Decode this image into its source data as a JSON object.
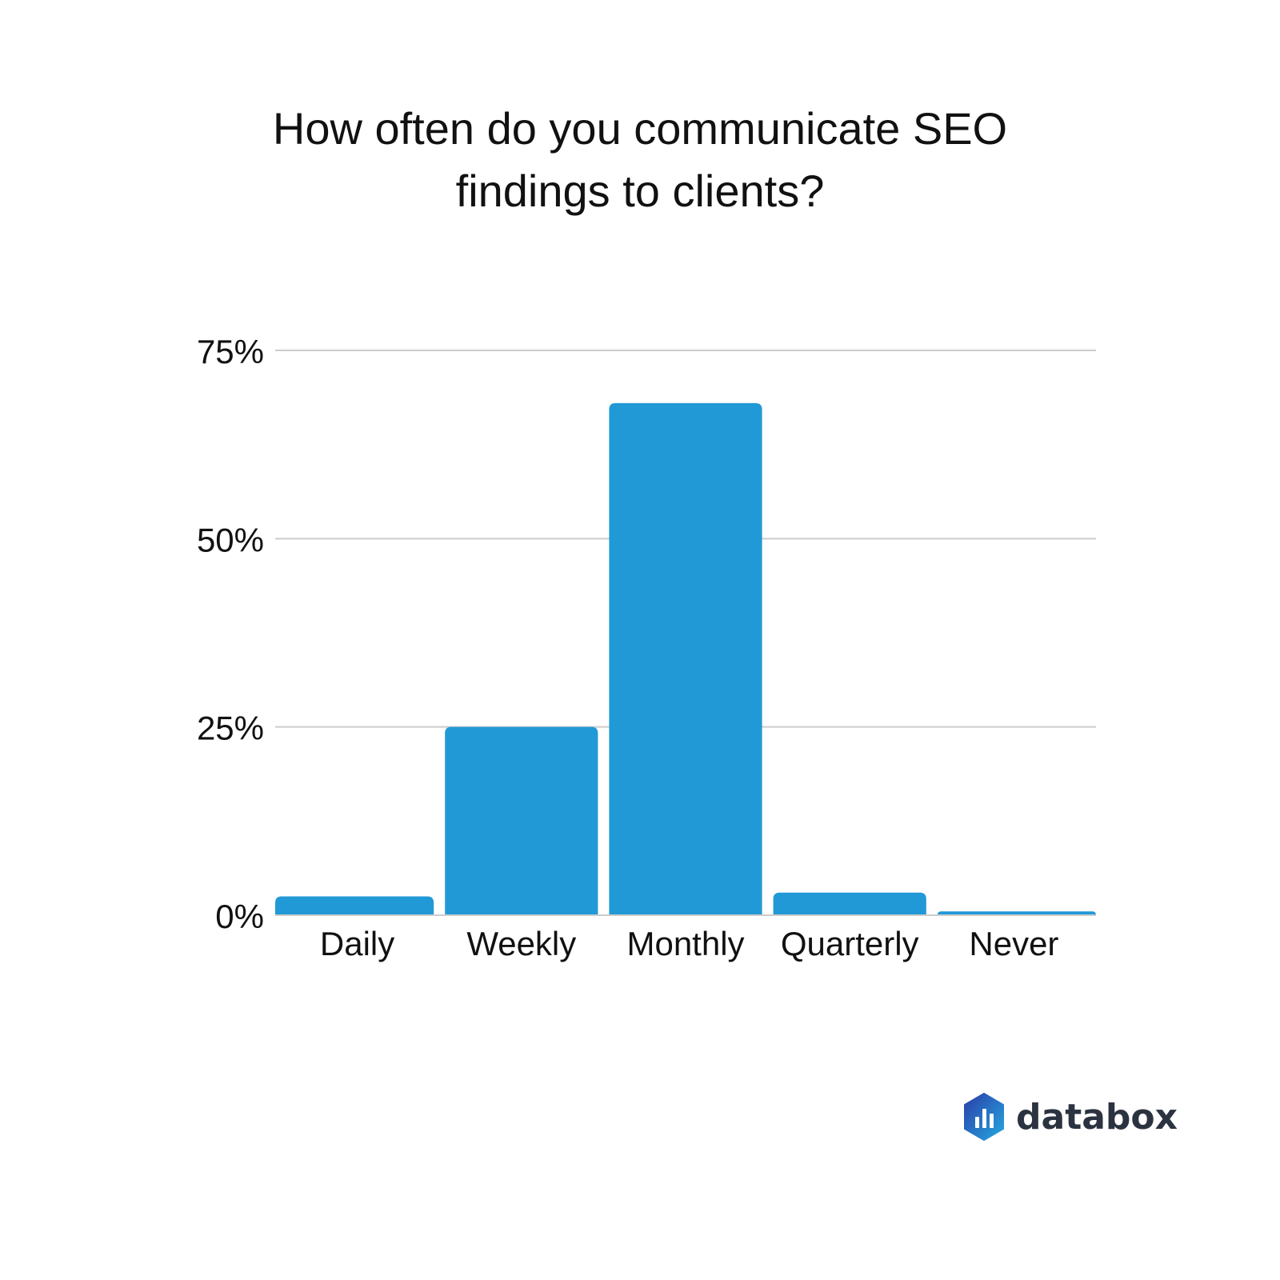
{
  "chart_data": {
    "type": "bar",
    "title_lines": [
      "How often do you communicate SEO",
      "findings to clients?"
    ],
    "categories": [
      "Daily",
      "Weekly",
      "Monthly",
      "Quarterly",
      "Never"
    ],
    "values": [
      2.5,
      25,
      68,
      3,
      0.5
    ],
    "ylim": [
      0,
      75
    ],
    "yticks": [
      0,
      25,
      50,
      75
    ],
    "ytick_labels": [
      "0%",
      "25%",
      "50%",
      "75%"
    ],
    "xlabel": "",
    "ylabel": "",
    "grid": true,
    "bar_color": "#2199d6",
    "grid_color": "#cccccc"
  },
  "brand": {
    "name": "databox",
    "logo_icon": "databox-hexagon-icon"
  }
}
